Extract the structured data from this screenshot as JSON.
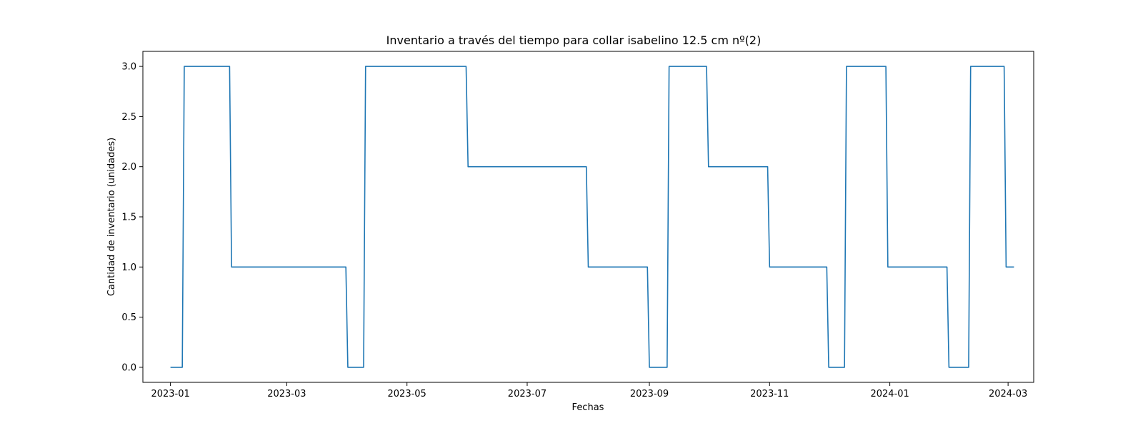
{
  "chart_data": {
    "type": "line",
    "title": "Inventario a través del tiempo para collar isabelino 12.5 cm nº(2)",
    "xlabel": "Fechas",
    "ylabel": "Cantidad de inventario (unidades)",
    "x_ticks": [
      "2023-01",
      "2023-03",
      "2023-05",
      "2023-07",
      "2023-09",
      "2023-11",
      "2024-01",
      "2024-03"
    ],
    "y_ticks": [
      "0.0",
      "0.5",
      "1.0",
      "1.5",
      "2.0",
      "2.5",
      "3.0"
    ],
    "xlim": [
      "2022-12-18",
      "2024-03-14"
    ],
    "ylim": [
      -0.15,
      3.15
    ],
    "grid": false,
    "series": [
      {
        "color": "#1f77b4",
        "points": [
          [
            "2023-01-01",
            0
          ],
          [
            "2023-01-07",
            0
          ],
          [
            "2023-01-08",
            3
          ],
          [
            "2023-01-31",
            3
          ],
          [
            "2023-02-01",
            1
          ],
          [
            "2023-03-31",
            1
          ],
          [
            "2023-04-01",
            0
          ],
          [
            "2023-04-09",
            0
          ],
          [
            "2023-04-10",
            3
          ],
          [
            "2023-05-31",
            3
          ],
          [
            "2023-06-01",
            2
          ],
          [
            "2023-07-31",
            2
          ],
          [
            "2023-08-01",
            1
          ],
          [
            "2023-08-31",
            1
          ],
          [
            "2023-09-01",
            0
          ],
          [
            "2023-09-10",
            0
          ],
          [
            "2023-09-11",
            3
          ],
          [
            "2023-09-30",
            3
          ],
          [
            "2023-10-01",
            2
          ],
          [
            "2023-10-31",
            2
          ],
          [
            "2023-11-01",
            1
          ],
          [
            "2023-11-30",
            1
          ],
          [
            "2023-12-01",
            0
          ],
          [
            "2023-12-09",
            0
          ],
          [
            "2023-12-10",
            3
          ],
          [
            "2023-12-30",
            3
          ],
          [
            "2023-12-31",
            1
          ],
          [
            "2024-01-30",
            1
          ],
          [
            "2024-01-31",
            0
          ],
          [
            "2024-02-10",
            0
          ],
          [
            "2024-02-11",
            3
          ],
          [
            "2024-02-28",
            3
          ],
          [
            "2024-02-29",
            1
          ],
          [
            "2024-03-04",
            1
          ]
        ]
      }
    ]
  }
}
